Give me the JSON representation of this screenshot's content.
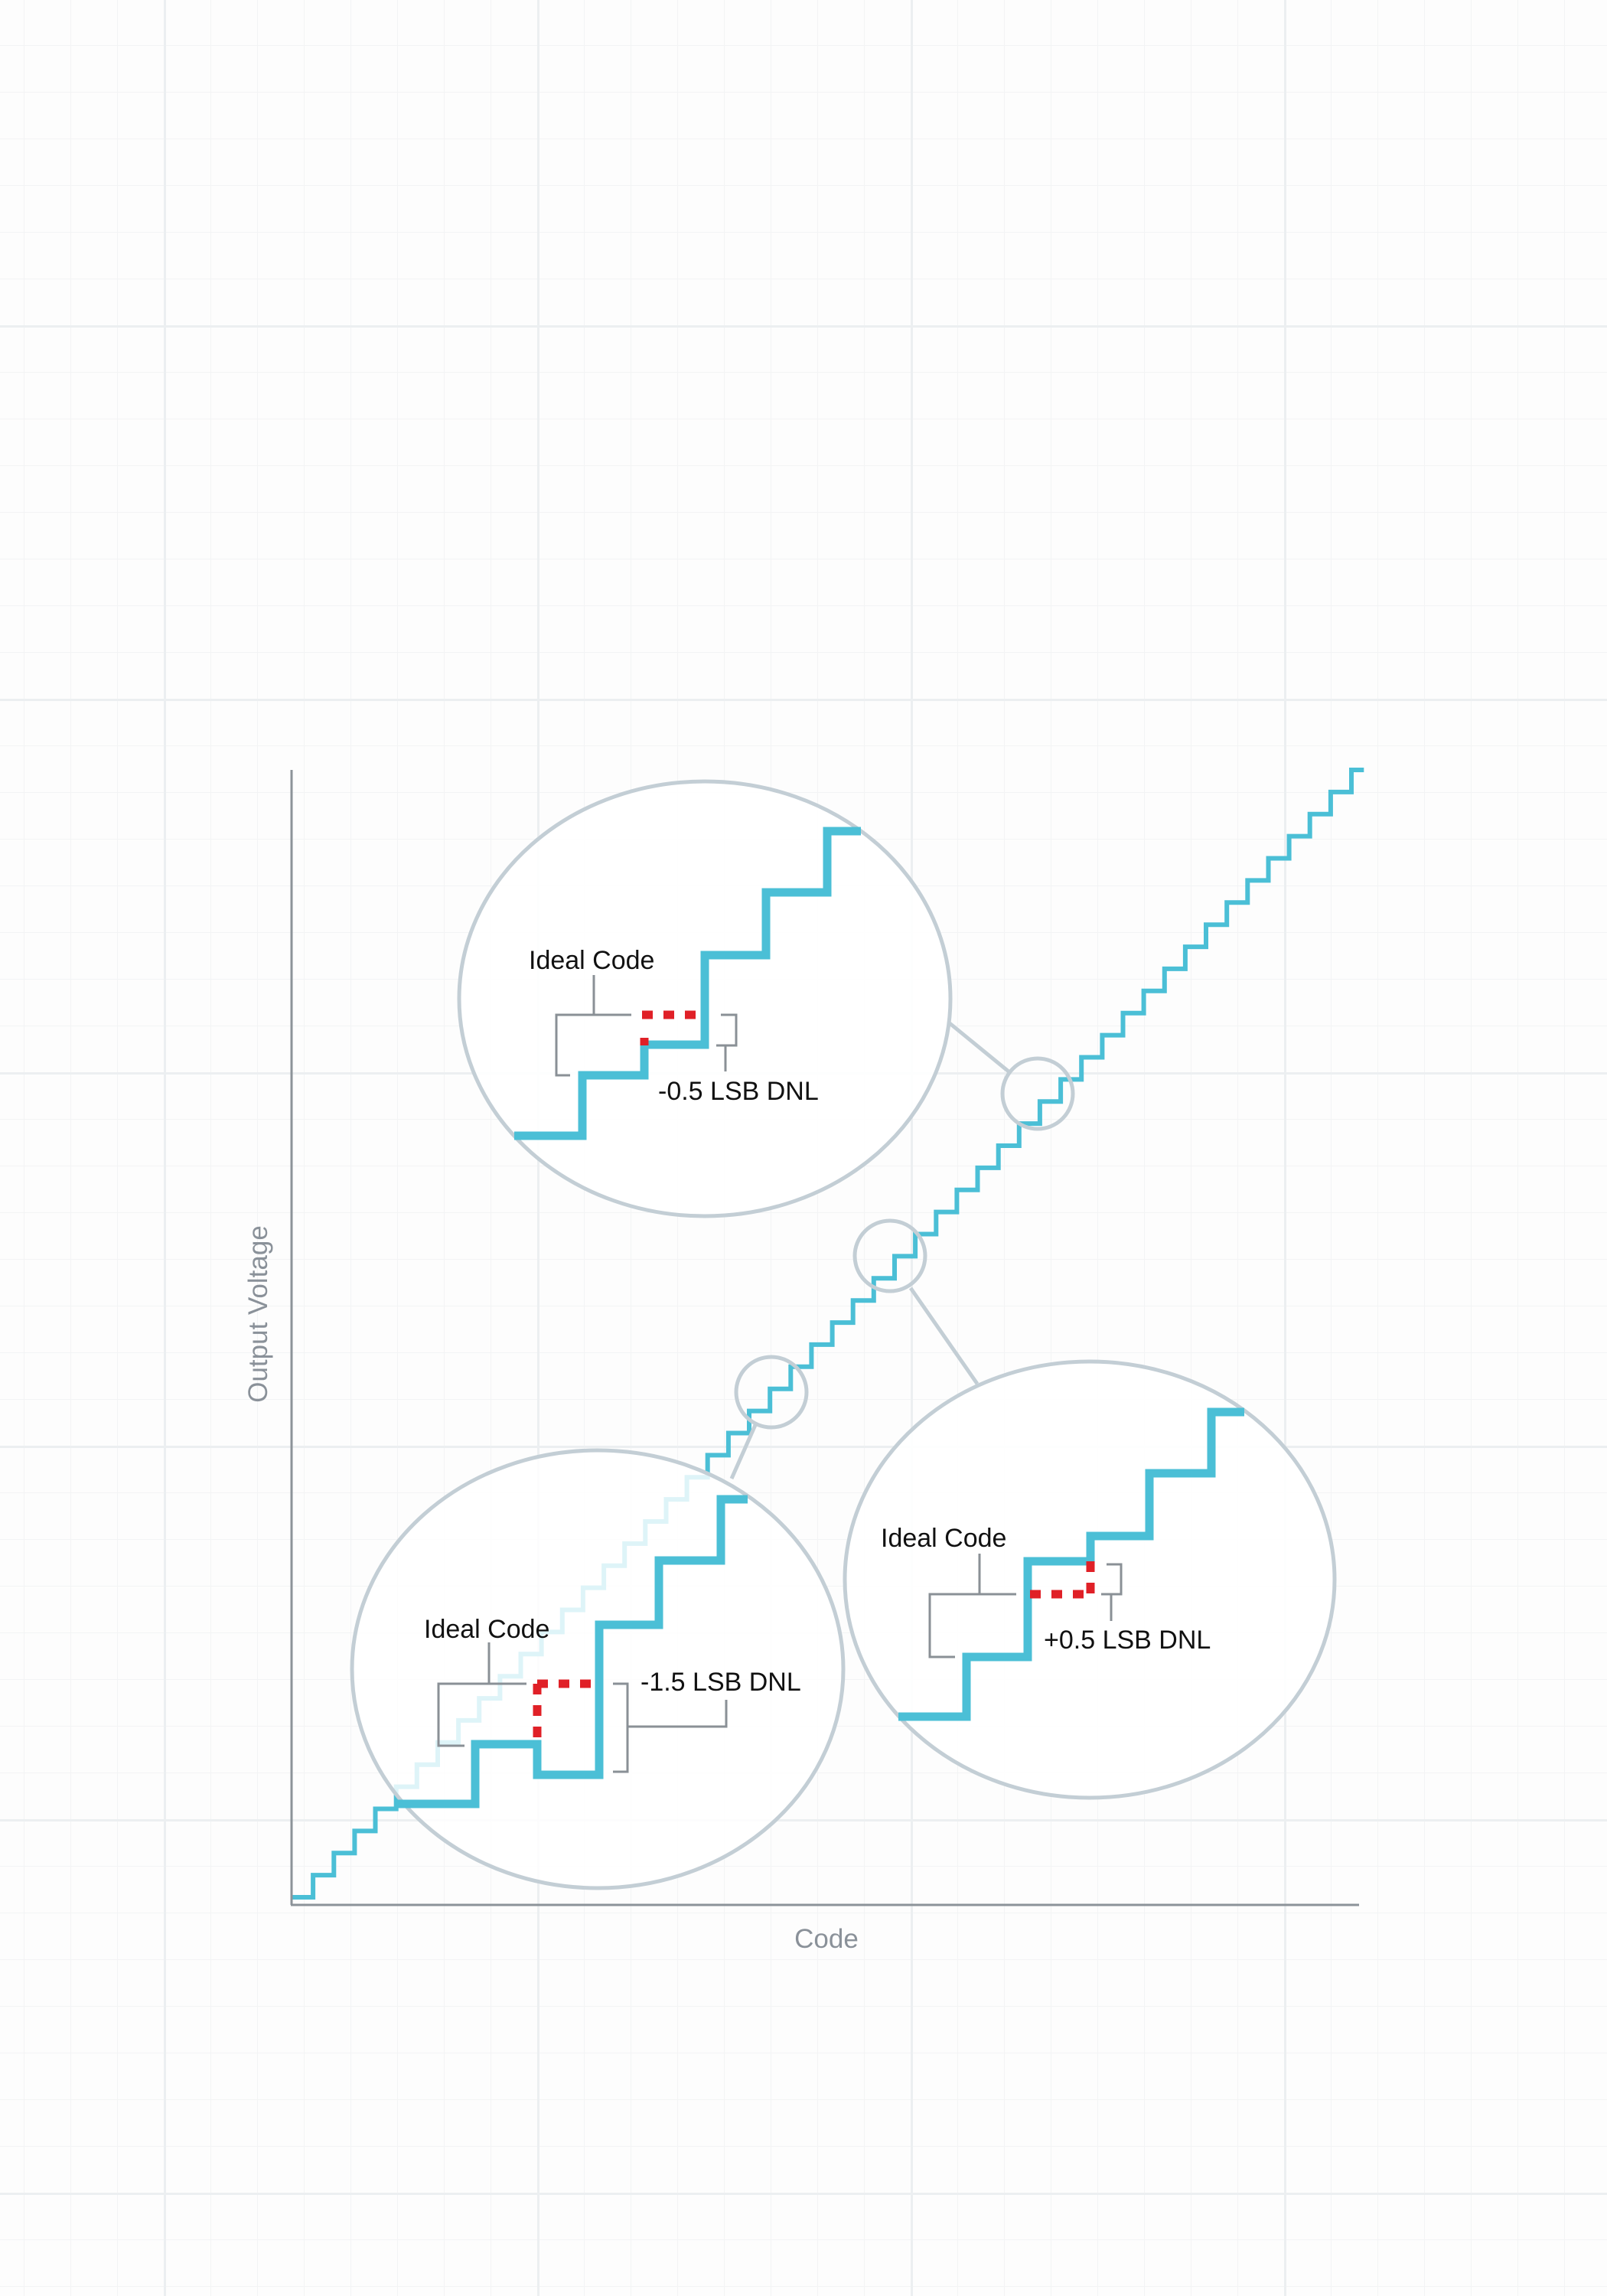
{
  "axes": {
    "x_label": "Code",
    "y_label": "Output Voltage"
  },
  "callouts": [
    {
      "ideal_label": "Ideal Code",
      "dnl_label": "-0.5 LSB DNL",
      "dnl_lsb": -0.5
    },
    {
      "ideal_label": "Ideal Code",
      "dnl_label": "-1.5 LSB DNL",
      "dnl_lsb": -1.5
    },
    {
      "ideal_label": "Ideal Code",
      "dnl_label": "+0.5 LSB DNL",
      "dnl_lsb": 0.5
    }
  ],
  "colors": {
    "staircase": "#4bbfd6",
    "dnl_marker": "#e02027",
    "magnifier": "#c3ced5",
    "axis": "#8c9399",
    "bracket": "#8a9096"
  }
}
